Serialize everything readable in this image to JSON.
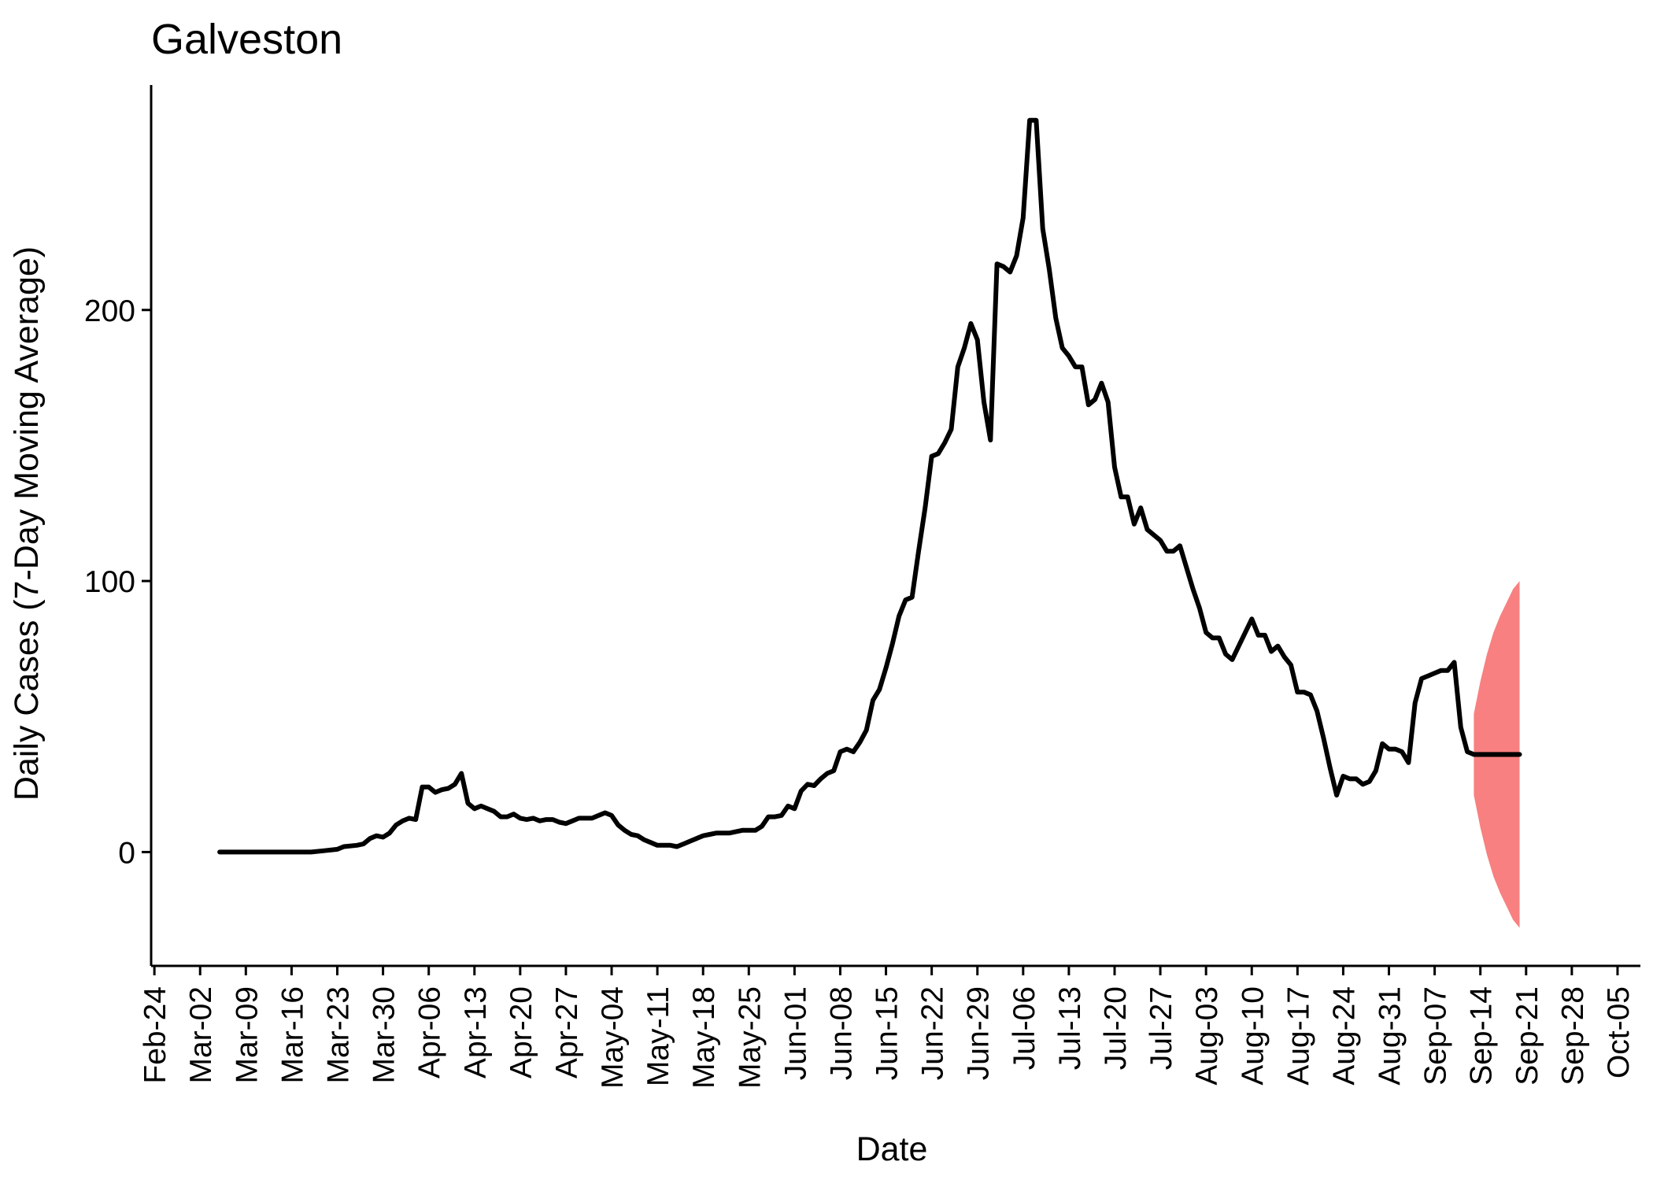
{
  "chart_data": {
    "type": "line",
    "title": "Galveston",
    "xlabel": "Date",
    "ylabel": "Daily Cases (7-Day Moving Average)",
    "x_ticks": [
      "Feb-24",
      "Mar-02",
      "Mar-09",
      "Mar-16",
      "Mar-23",
      "Mar-30",
      "Apr-06",
      "Apr-13",
      "Apr-20",
      "Apr-27",
      "May-04",
      "May-11",
      "May-18",
      "May-25",
      "Jun-01",
      "Jun-08",
      "Jun-15",
      "Jun-22",
      "Jun-29",
      "Jul-06",
      "Jul-13",
      "Jul-20",
      "Jul-27",
      "Aug-03",
      "Aug-10",
      "Aug-17",
      "Aug-24",
      "Aug-31",
      "Sep-07",
      "Sep-14",
      "Sep-21",
      "Sep-28",
      "Oct-05"
    ],
    "y_ticks": [
      0,
      100,
      200
    ],
    "xlim_days": [
      -0.5,
      227.5
    ],
    "ylim": [
      -42,
      283
    ],
    "grid": false,
    "series": [
      {
        "color": "#000000",
        "points": [
          [
            10,
            0
          ],
          [
            14,
            0
          ],
          [
            18,
            0
          ],
          [
            22,
            0
          ],
          [
            24,
            0
          ],
          [
            26,
            0.5
          ],
          [
            28,
            1
          ],
          [
            29,
            2
          ],
          [
            31,
            2.5
          ],
          [
            32,
            3
          ],
          [
            33,
            5
          ],
          [
            34,
            6
          ],
          [
            35,
            5.5
          ],
          [
            36,
            7
          ],
          [
            37,
            10
          ],
          [
            38,
            11.5
          ],
          [
            39,
            12.5
          ],
          [
            40,
            12
          ],
          [
            41,
            24
          ],
          [
            42,
            24
          ],
          [
            43,
            22
          ],
          [
            44,
            23
          ],
          [
            45,
            23.5
          ],
          [
            46,
            25
          ],
          [
            47,
            29
          ],
          [
            48,
            18
          ],
          [
            49,
            16
          ],
          [
            50,
            17
          ],
          [
            51,
            16
          ],
          [
            52,
            15
          ],
          [
            53,
            13
          ],
          [
            54,
            13
          ],
          [
            55,
            14
          ],
          [
            56,
            12.5
          ],
          [
            57,
            12
          ],
          [
            58,
            12.5
          ],
          [
            59,
            11.5
          ],
          [
            60,
            12
          ],
          [
            61,
            12
          ],
          [
            62,
            11
          ],
          [
            63,
            10.5
          ],
          [
            64,
            11.5
          ],
          [
            65,
            12.5
          ],
          [
            66,
            12.5
          ],
          [
            67,
            12.5
          ],
          [
            68,
            13.5
          ],
          [
            69,
            14.5
          ],
          [
            70,
            13.5
          ],
          [
            71,
            10
          ],
          [
            72,
            8
          ],
          [
            73,
            6.5
          ],
          [
            74,
            6
          ],
          [
            75,
            4.5
          ],
          [
            76,
            3.5
          ],
          [
            77,
            2.5
          ],
          [
            78,
            2.5
          ],
          [
            79,
            2.5
          ],
          [
            80,
            2
          ],
          [
            81,
            3
          ],
          [
            82,
            4
          ],
          [
            83,
            5
          ],
          [
            84,
            6
          ],
          [
            85,
            6.5
          ],
          [
            86,
            7
          ],
          [
            87,
            7
          ],
          [
            88,
            7
          ],
          [
            89,
            7.5
          ],
          [
            90,
            8
          ],
          [
            91,
            8
          ],
          [
            92,
            8
          ],
          [
            93,
            9.5
          ],
          [
            94,
            13
          ],
          [
            95,
            13
          ],
          [
            96,
            13.5
          ],
          [
            97,
            17
          ],
          [
            98,
            16
          ],
          [
            99,
            22.5
          ],
          [
            100,
            25
          ],
          [
            101,
            24.5
          ],
          [
            102,
            27
          ],
          [
            103,
            29
          ],
          [
            104,
            30
          ],
          [
            105,
            37
          ],
          [
            106,
            38
          ],
          [
            107,
            37
          ],
          [
            108,
            40.5
          ],
          [
            109,
            45
          ],
          [
            110,
            56
          ],
          [
            111,
            60
          ],
          [
            112,
            68
          ],
          [
            113,
            77
          ],
          [
            114,
            87
          ],
          [
            115,
            93
          ],
          [
            116,
            94
          ],
          [
            117,
            111
          ],
          [
            118,
            127
          ],
          [
            119,
            146
          ],
          [
            120,
            147
          ],
          [
            121,
            151
          ],
          [
            122,
            156
          ],
          [
            123,
            179
          ],
          [
            124,
            186
          ],
          [
            125,
            195
          ],
          [
            126,
            189
          ],
          [
            127,
            166
          ],
          [
            128,
            152
          ],
          [
            129,
            217
          ],
          [
            130,
            216
          ],
          [
            131,
            214
          ],
          [
            132,
            220
          ],
          [
            133,
            234
          ],
          [
            134,
            270
          ],
          [
            135,
            270
          ],
          [
            136,
            230
          ],
          [
            137,
            215
          ],
          [
            138,
            197
          ],
          [
            139,
            186
          ],
          [
            140,
            183
          ],
          [
            141,
            179
          ],
          [
            142,
            179
          ],
          [
            143,
            165
          ],
          [
            144,
            167
          ],
          [
            145,
            173
          ],
          [
            146,
            166
          ],
          [
            147,
            142
          ],
          [
            148,
            131
          ],
          [
            149,
            131
          ],
          [
            150,
            121
          ],
          [
            151,
            127
          ],
          [
            152,
            119
          ],
          [
            153,
            117
          ],
          [
            154,
            115
          ],
          [
            155,
            111
          ],
          [
            156,
            111
          ],
          [
            157,
            113
          ],
          [
            158,
            105
          ],
          [
            159,
            97
          ],
          [
            160,
            90
          ],
          [
            161,
            81
          ],
          [
            162,
            79
          ],
          [
            163,
            79
          ],
          [
            164,
            73
          ],
          [
            165,
            71
          ],
          [
            166,
            76
          ],
          [
            167,
            81
          ],
          [
            168,
            86
          ],
          [
            169,
            80
          ],
          [
            170,
            80
          ],
          [
            171,
            74
          ],
          [
            172,
            76
          ],
          [
            173,
            72
          ],
          [
            174,
            69
          ],
          [
            175,
            59
          ],
          [
            176,
            59
          ],
          [
            177,
            58
          ],
          [
            178,
            52
          ],
          [
            179,
            42
          ],
          [
            180,
            31
          ],
          [
            181,
            21
          ],
          [
            182,
            28
          ],
          [
            183,
            27
          ],
          [
            184,
            27
          ],
          [
            185,
            25
          ],
          [
            186,
            26
          ],
          [
            187,
            30
          ],
          [
            188,
            40
          ],
          [
            189,
            38
          ],
          [
            190,
            38
          ],
          [
            191,
            37
          ],
          [
            192,
            33
          ],
          [
            193,
            55
          ],
          [
            194,
            64
          ],
          [
            195,
            65
          ],
          [
            196,
            66
          ],
          [
            197,
            67
          ],
          [
            198,
            67
          ],
          [
            199,
            70
          ],
          [
            200,
            46
          ],
          [
            201,
            37
          ],
          [
            202,
            36
          ],
          [
            209,
            36
          ]
        ]
      }
    ],
    "forecast": {
      "color": "#F88080",
      "start_day": 202,
      "end_day": 209,
      "center": 36,
      "upper": [
        [
          202,
          51
        ],
        [
          203,
          63
        ],
        [
          204,
          73
        ],
        [
          205,
          81
        ],
        [
          206,
          87
        ],
        [
          207,
          92
        ],
        [
          208,
          97
        ],
        [
          209,
          100
        ]
      ],
      "lower": [
        [
          202,
          21
        ],
        [
          203,
          9
        ],
        [
          204,
          -1
        ],
        [
          205,
          -9
        ],
        [
          206,
          -15
        ],
        [
          207,
          -20
        ],
        [
          208,
          -25
        ],
        [
          209,
          -28
        ]
      ]
    }
  }
}
